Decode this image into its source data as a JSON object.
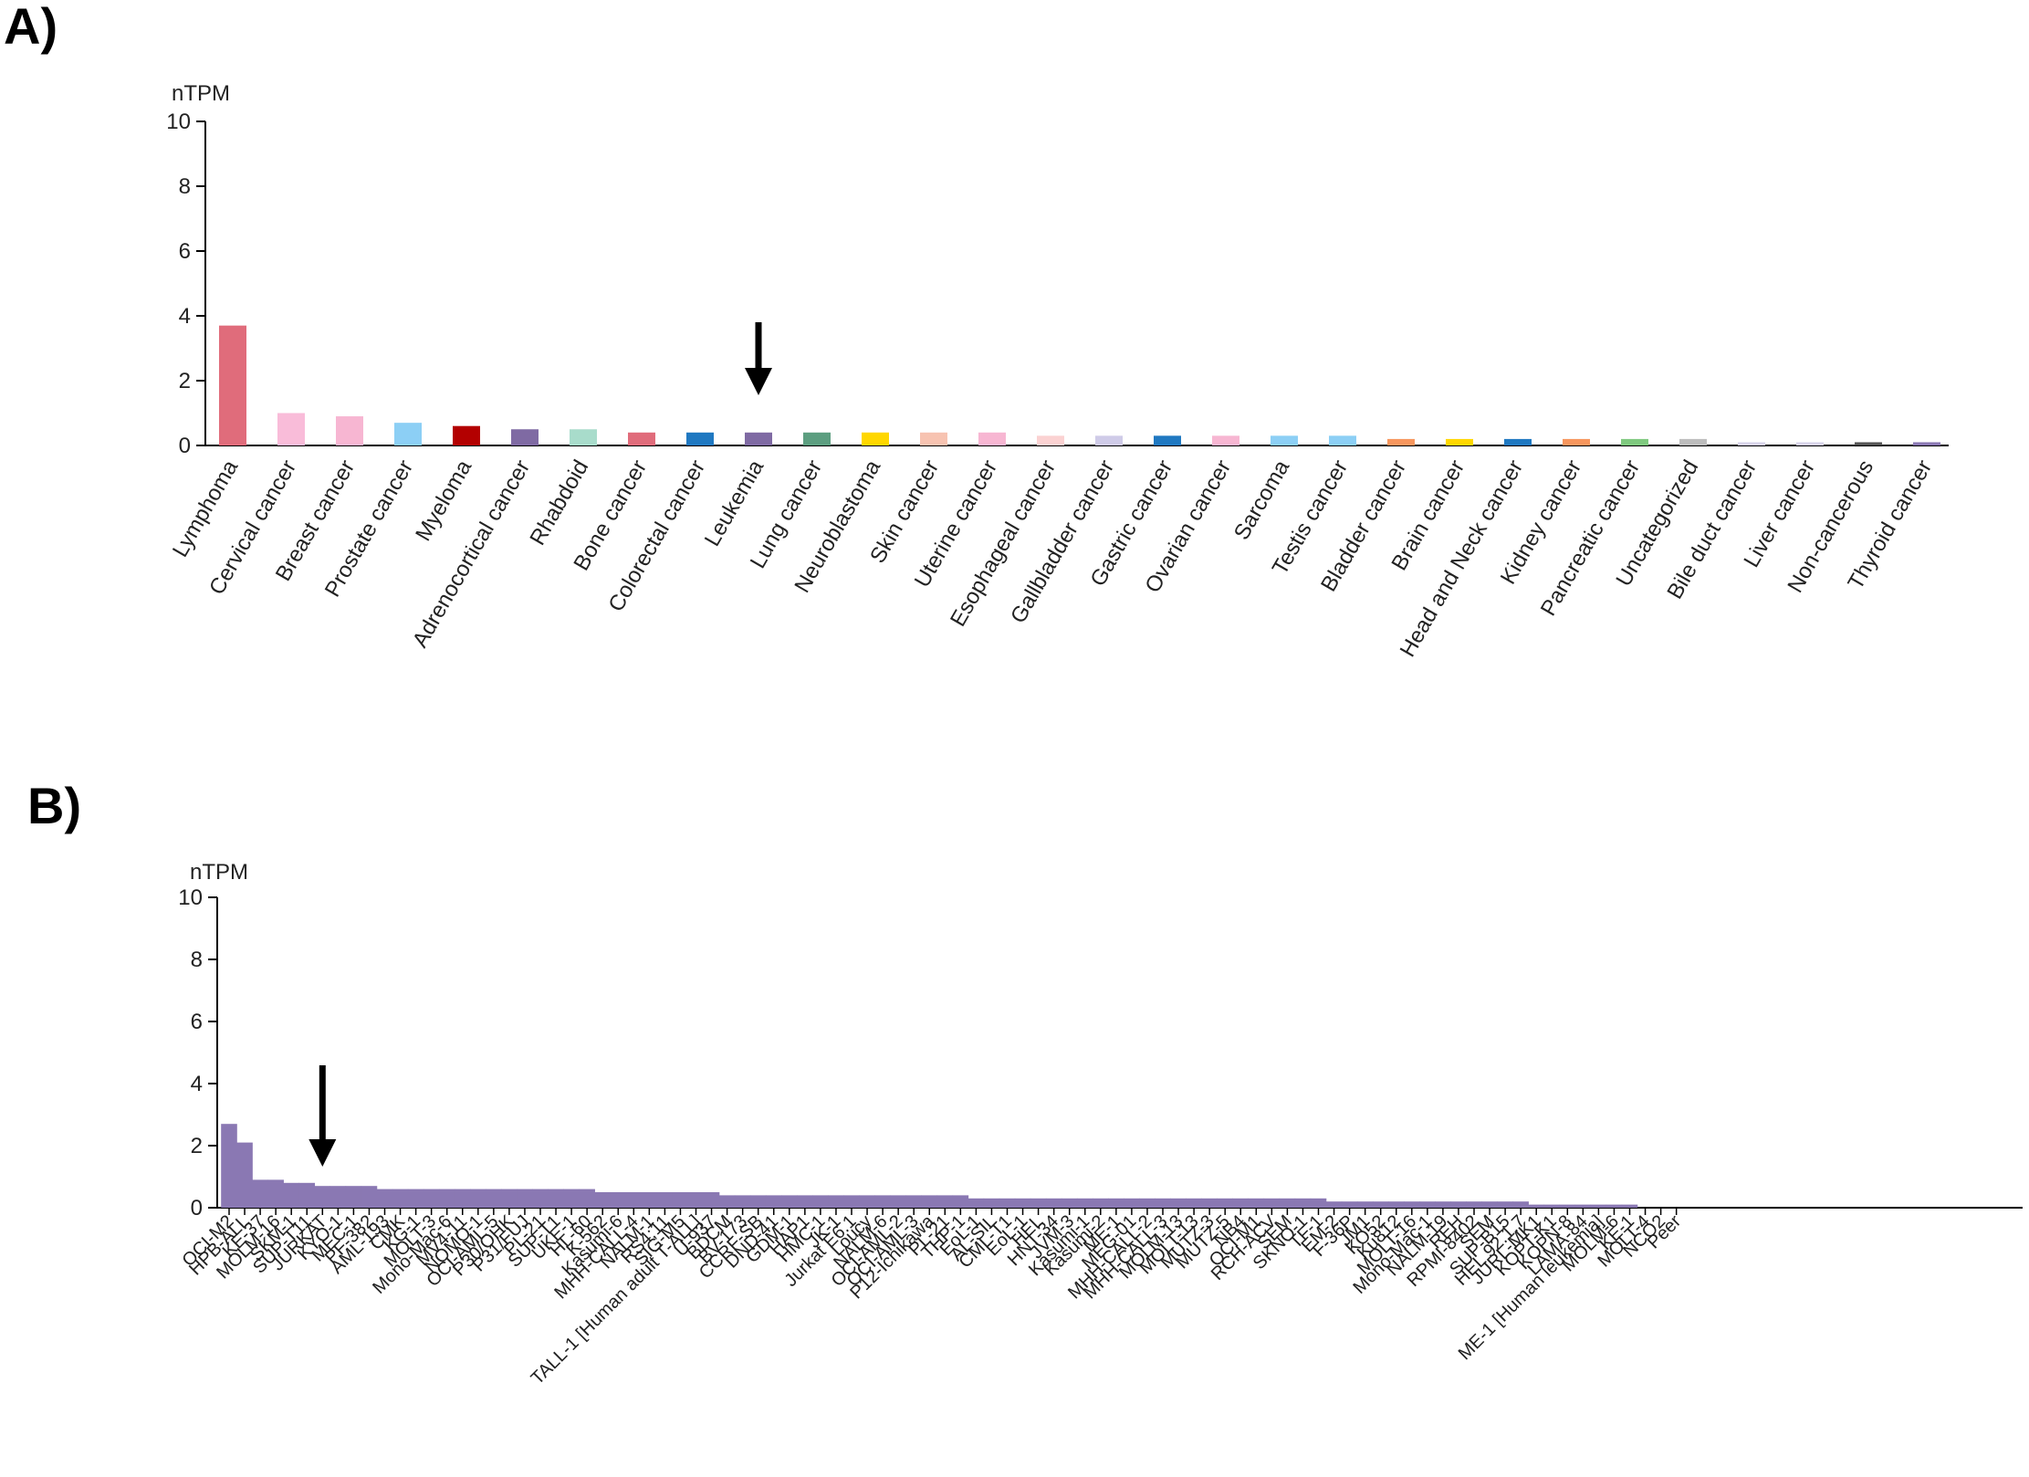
{
  "panels": {
    "a_label": "A)",
    "b_label": "B)"
  },
  "chart_data": [
    {
      "type": "bar",
      "ylabel": "nTPM",
      "ylim": [
        0,
        10
      ],
      "yticks": [
        0,
        2,
        4,
        6,
        8,
        10
      ],
      "arrow_at": "Leukemia",
      "categories": [
        "Lymphoma",
        "Cervical cancer",
        "Breast cancer",
        "Prostate cancer",
        "Myeloma",
        "Adrenocortical cancer",
        "Rhabdoid",
        "Bone cancer",
        "Colorectal cancer",
        "Leukemia",
        "Lung cancer",
        "Neuroblastoma",
        "Skin cancer",
        "Uterine cancer",
        "Esophageal cancer",
        "Gallbladder cancer",
        "Gastric cancer",
        "Ovarian cancer",
        "Sarcoma",
        "Testis cancer",
        "Bladder cancer",
        "Brain cancer",
        "Head and Neck cancer",
        "Kidney cancer",
        "Pancreatic cancer",
        "Uncategorized",
        "Bile duct cancer",
        "Liver cancer",
        "Non-cancerous",
        "Thyroid cancer"
      ],
      "values": [
        3.7,
        1.0,
        0.9,
        0.7,
        0.6,
        0.5,
        0.5,
        0.4,
        0.4,
        0.4,
        0.4,
        0.4,
        0.4,
        0.4,
        0.3,
        0.3,
        0.3,
        0.3,
        0.3,
        0.3,
        0.2,
        0.2,
        0.2,
        0.2,
        0.2,
        0.2,
        0.1,
        0.1,
        0.1,
        0.1
      ],
      "colors": [
        "#e06c7b",
        "#f9bcd9",
        "#f7b6d2",
        "#8ccff5",
        "#b30000",
        "#7f6aa3",
        "#a8dccb",
        "#e06c7b",
        "#1f78c1",
        "#7f6aa3",
        "#5c9e80",
        "#ffd700",
        "#f7c3b1",
        "#f7b6d2",
        "#fbd2d2",
        "#cfcbe8",
        "#1f78c1",
        "#f7b6d2",
        "#8ccff5",
        "#8ccff5",
        "#f7965d",
        "#ffd700",
        "#1f78c1",
        "#f7965d",
        "#7fc97f",
        "#bdbdbd",
        "#d8d4ec",
        "#d8d4ec",
        "#555555",
        "#8a78b3"
      ]
    },
    {
      "type": "bar",
      "ylabel": "nTPM",
      "ylim": [
        0,
        10
      ],
      "yticks": [
        0,
        2,
        4,
        6,
        8,
        10
      ],
      "arrow_at": "JURKAT",
      "bar_color": "#8a78b3",
      "categories": [
        "OCI-M2",
        "HPB-ALL",
        "KE-37",
        "MOLM-16",
        "SKM-1",
        "SUP-T11",
        "JURKAT",
        "KYO-1",
        "MEC-1",
        "PF-382",
        "AML-193",
        "CMK",
        "KG-1",
        "MOLT-3",
        "Mono-Mac-6",
        "MV4-11",
        "NOMO-1",
        "OCI-AML-5",
        "P30/OHK",
        "P31/FUJ",
        "PL-21",
        "SUP-T1",
        "UKE-1",
        "HL-60",
        "K-562",
        "Kasumi-6",
        "MHH-CALL-4",
        "NALM-1",
        "RS4;11",
        "SIG-M5",
        "TALL-1 [Human adult T-ALL]",
        "U-937",
        "BDCM",
        "BV-173",
        "CCRF-SB",
        "DND-41",
        "GDM-1",
        "HAP1",
        "HMC-1",
        "JK-1",
        "Jurkat E6.1",
        "Loucy",
        "NALM-6",
        "OCI-AML-2",
        "OCI-AML-3",
        "P12-Ichikawa",
        "PL-21",
        "THP-1",
        "EoL-1",
        "AL-SIL",
        "CML-T1",
        "EoL-1",
        "HEL",
        "HNT-34",
        "JVM-3",
        "Kasumi-1",
        "Kasumi-2",
        "ME-1",
        "MEG-01",
        "MHH-CALL-2",
        "MHH-CALL-3",
        "MOLM-13",
        "MOLT-13",
        "MUTZ-3",
        "MUTZ-5",
        "NB4",
        "OCI-M1",
        "RCH-ACV",
        "SEM",
        "SKNO-1",
        "TF-1",
        "EM-2",
        "F-36P",
        "JM1",
        "KO52",
        "Ku812",
        "MOLT-16",
        "Mono-Mac-1",
        "NALM-19",
        "REH",
        "RPMI-8402",
        "SEM",
        "SUP-B15",
        "HEL 92.1.7",
        "JURL-MK1",
        "KOPT-K1",
        "KOPN-8",
        "LAMA-84",
        "ME-1 [Human leukemia]",
        "MOLM-6",
        "KE-1",
        "MOLT-4",
        "NCO2",
        "Peer"
      ],
      "values": [
        2.7,
        2.1,
        0.9,
        0.9,
        0.8,
        0.8,
        0.7,
        0.7,
        0.7,
        0.7,
        0.6,
        0.6,
        0.6,
        0.6,
        0.6,
        0.6,
        0.6,
        0.6,
        0.6,
        0.6,
        0.6,
        0.6,
        0.6,
        0.6,
        0.5,
        0.5,
        0.5,
        0.5,
        0.5,
        0.5,
        0.5,
        0.5,
        0.4,
        0.4,
        0.4,
        0.4,
        0.4,
        0.4,
        0.4,
        0.4,
        0.4,
        0.4,
        0.4,
        0.4,
        0.4,
        0.4,
        0.4,
        0.4,
        0.3,
        0.3,
        0.3,
        0.3,
        0.3,
        0.3,
        0.3,
        0.3,
        0.3,
        0.3,
        0.3,
        0.3,
        0.3,
        0.3,
        0.3,
        0.3,
        0.3,
        0.3,
        0.3,
        0.3,
        0.3,
        0.3,
        0.3,
        0.2,
        0.2,
        0.2,
        0.2,
        0.2,
        0.2,
        0.2,
        0.2,
        0.2,
        0.2,
        0.2,
        0.2,
        0.2,
        0.1,
        0.1,
        0.1,
        0.1,
        0.1,
        0.1,
        0.1,
        0.0,
        0.0,
        0.0
      ]
    }
  ]
}
